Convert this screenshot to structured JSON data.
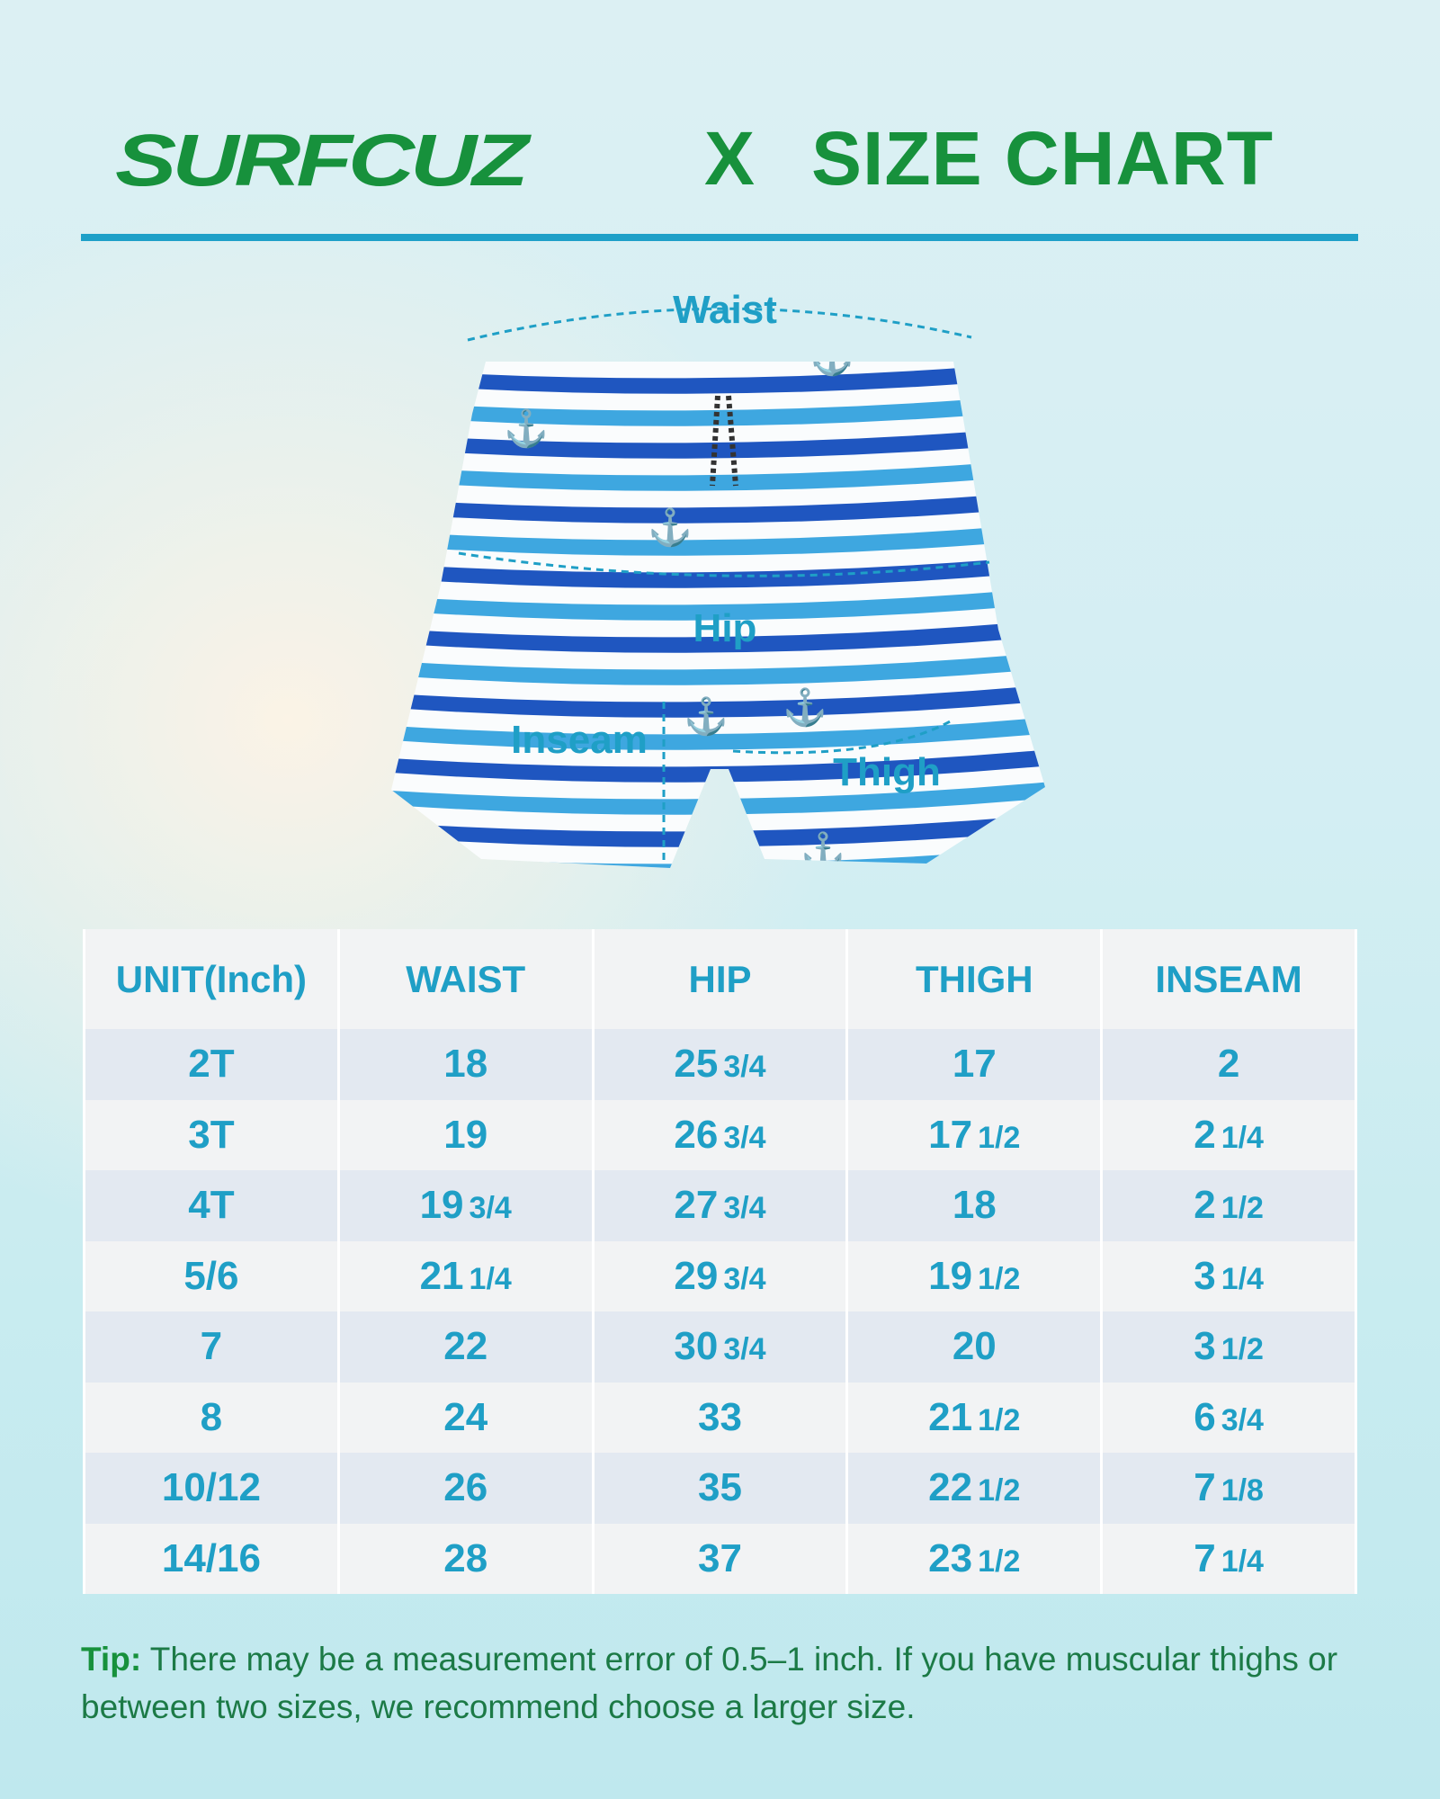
{
  "title": {
    "brand": "SURFCUZ",
    "separator": "X",
    "heading": "SIZE CHART"
  },
  "colors": {
    "brand_green": "#17913c",
    "accent_blue": "#1ea0c8",
    "text_blue": "#1f9fc6",
    "row_alt": "#e3e9f1",
    "row": "#f2f3f4"
  },
  "diagram": {
    "image": "striped swim shorts with anchor print",
    "labels": {
      "waist": "Waist",
      "hip": "Hip",
      "inseam": "Inseam",
      "thigh": "Thigh"
    }
  },
  "table": {
    "headers": [
      "UNIT(Inch)",
      "WAIST",
      "HIP",
      "THIGH",
      "INSEAM"
    ],
    "rows": [
      [
        [
          "2T",
          ""
        ],
        [
          "18",
          ""
        ],
        [
          "25",
          "3/4"
        ],
        [
          "17",
          ""
        ],
        [
          "2",
          ""
        ]
      ],
      [
        [
          "3T",
          ""
        ],
        [
          "19",
          ""
        ],
        [
          "26",
          "3/4"
        ],
        [
          "17",
          "1/2"
        ],
        [
          "2",
          "1/4"
        ]
      ],
      [
        [
          "4T",
          ""
        ],
        [
          "19",
          "3/4"
        ],
        [
          "27",
          "3/4"
        ],
        [
          "18",
          ""
        ],
        [
          "2",
          "1/2"
        ]
      ],
      [
        [
          "5/6",
          ""
        ],
        [
          "21",
          "1/4"
        ],
        [
          "29",
          "3/4"
        ],
        [
          "19",
          "1/2"
        ],
        [
          "3",
          "1/4"
        ]
      ],
      [
        [
          "7",
          ""
        ],
        [
          "22",
          ""
        ],
        [
          "30",
          "3/4"
        ],
        [
          "20",
          ""
        ],
        [
          "3",
          "1/2"
        ]
      ],
      [
        [
          "8",
          ""
        ],
        [
          "24",
          ""
        ],
        [
          "33",
          ""
        ],
        [
          "21",
          "1/2"
        ],
        [
          "6",
          "3/4"
        ]
      ],
      [
        [
          "10/12",
          ""
        ],
        [
          "26",
          ""
        ],
        [
          "35",
          ""
        ],
        [
          "22",
          "1/2"
        ],
        [
          "7",
          "1/8"
        ]
      ],
      [
        [
          "14/16",
          ""
        ],
        [
          "28",
          ""
        ],
        [
          "37",
          ""
        ],
        [
          "23",
          "1/2"
        ],
        [
          "7",
          "1/4"
        ]
      ]
    ]
  },
  "tip": {
    "label": "Tip:",
    "text": " There may be a measurement error of 0.5–1 inch. If you have muscular thighs or between two sizes, we recommend choose a larger size."
  }
}
